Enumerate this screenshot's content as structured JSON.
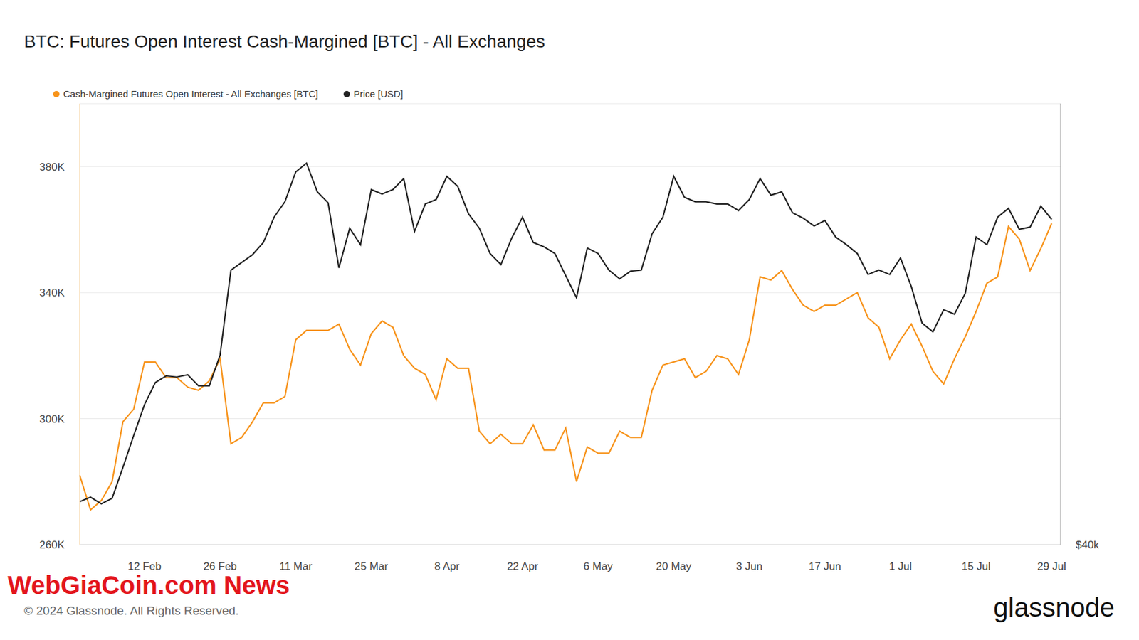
{
  "chart_data": {
    "type": "line",
    "title": "BTC: Futures Open Interest Cash-Margined [BTC] - All Exchanges",
    "watermark": "WebGiaCoin.com News",
    "source": "© 2024 Glassnode. All Rights Reserved.",
    "logo": "glassnode",
    "legend": "top-left",
    "grid": true,
    "categories": [
      null,
      null,
      null,
      null,
      null,
      null,
      "12 Feb",
      null,
      null,
      null,
      null,
      null,
      null,
      "26 Feb",
      null,
      null,
      null,
      null,
      null,
      null,
      "11 Mar",
      null,
      null,
      null,
      null,
      null,
      null,
      "25 Mar",
      null,
      null,
      null,
      null,
      null,
      null,
      "8 Apr",
      null,
      null,
      null,
      null,
      null,
      null,
      "22 Apr",
      null,
      null,
      null,
      null,
      null,
      null,
      "6 May",
      null,
      null,
      null,
      null,
      null,
      null,
      "20 May",
      null,
      null,
      null,
      null,
      null,
      null,
      "3 Jun",
      null,
      null,
      null,
      null,
      null,
      null,
      "17 Jun",
      null,
      null,
      null,
      null,
      null,
      null,
      "1 Jul",
      null,
      null,
      null,
      null,
      null,
      null,
      "15 Jul",
      null,
      null,
      null,
      null,
      null,
      null,
      "29 Jul"
    ],
    "series": [
      {
        "name": "Cash-Margined Futures Open Interest - All Exchanges [BTC]",
        "color": "#f7931a",
        "values": [
          282000,
          271000,
          274000,
          280000,
          299000,
          303000,
          318000,
          318000,
          313000,
          313000,
          310000,
          309000,
          312000,
          319000,
          292000,
          294000,
          299000,
          305000,
          305000,
          307000,
          325000,
          328000,
          328000,
          328000,
          330000,
          322000,
          317000,
          327000,
          331000,
          329000,
          320000,
          316000,
          314000,
          306000,
          319000,
          316000,
          316000,
          296000,
          292000,
          295000,
          292000,
          292000,
          298000,
          290000,
          290000,
          297000,
          280000,
          291000,
          289000,
          289000,
          296000,
          294000,
          294000,
          309000,
          317000,
          318000,
          319000,
          313000,
          315000,
          320000,
          319000,
          314000,
          325000,
          345000,
          344000,
          347000,
          341000,
          336000,
          334000,
          336000,
          336000,
          338000,
          340000,
          332000,
          329000,
          319000,
          325000,
          330000,
          323000,
          315000,
          311000,
          319000,
          326000,
          334000,
          343000,
          345000,
          361000,
          357000,
          347000,
          354000,
          362000
        ]
      },
      {
        "name": "Price [USD]",
        "color": "#222222",
        "axis": "y2",
        "values": [
          43900,
          44300,
          43700,
          44200,
          47000,
          49900,
          52700,
          54700,
          55300,
          55200,
          55400,
          54400,
          54400,
          57200,
          64900,
          65600,
          66300,
          67400,
          69700,
          71100,
          73800,
          74600,
          72000,
          71000,
          65100,
          68700,
          67200,
          72200,
          71800,
          72200,
          73200,
          68400,
          70900,
          71300,
          73400,
          72500,
          70000,
          68700,
          66400,
          65400,
          67800,
          69700,
          67400,
          67000,
          66400,
          64400,
          62400,
          66900,
          66400,
          64900,
          64100,
          64800,
          64900,
          68200,
          69700,
          73400,
          71500,
          71100,
          71100,
          70900,
          70900,
          70300,
          71300,
          73200,
          71700,
          72000,
          70100,
          69600,
          68900,
          69400,
          67900,
          67200,
          66400,
          64500,
          64900,
          64500,
          66000,
          63400,
          60100,
          59300,
          61300,
          60900,
          62800,
          67900,
          67200,
          69700,
          70500,
          68600,
          68800,
          70700,
          69500
        ]
      }
    ],
    "ylim": [
      260000,
      400000
    ],
    "yticks": [
      {
        "value": 260000,
        "label": "260K"
      },
      {
        "value": 300000,
        "label": "300K"
      },
      {
        "value": 340000,
        "label": "340K"
      },
      {
        "value": 380000,
        "label": "380K"
      }
    ],
    "y2lim": [
      40000,
      80000
    ],
    "y2ticks": [
      {
        "value": 40000,
        "label": "$40k"
      }
    ]
  }
}
